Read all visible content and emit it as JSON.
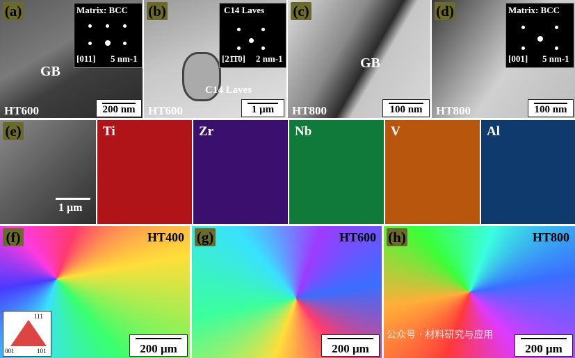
{
  "panels_top": [
    {
      "letter": "(a)",
      "condition": "HT600",
      "scale": "200 nm",
      "label_mid": "GB",
      "inset_title": "Matrix: BCC",
      "zone": "[011]",
      "inset_scale": "5 nm-1"
    },
    {
      "letter": "(b)",
      "condition": "HT600",
      "scale": "1 μm",
      "label_mid": "C14 Laves",
      "inset_title": "C14 Laves",
      "zone": "[21̄1̄0]",
      "inset_scale": "2 nm-1"
    },
    {
      "letter": "(c)",
      "condition": "HT800",
      "scale": "100 nm",
      "label_mid": "GB"
    },
    {
      "letter": "(d)",
      "condition": "HT800",
      "scale": "100 nm",
      "inset_title": "Matrix: BCC",
      "zone": "[001]",
      "inset_scale": "5 nm-1"
    }
  ],
  "row_e": {
    "letter": "(e)",
    "scale": "1 μm",
    "maps": [
      {
        "element": "Ti",
        "color": "#b01418",
        "text_color": "#ffffff"
      },
      {
        "element": "Zr",
        "color": "#3a0f6e",
        "text_color": "#ffffff"
      },
      {
        "element": "Nb",
        "color": "#0f7a3a",
        "text_color": "#ffffff"
      },
      {
        "element": "V",
        "color": "#b8560e",
        "text_color": "#ffffff"
      },
      {
        "element": "Al",
        "color": "#0f3a6e",
        "text_color": "#ffffff"
      }
    ]
  },
  "ebsd": [
    {
      "letter": "(f)",
      "condition": "HT400",
      "scale": "200 μm"
    },
    {
      "letter": "(g)",
      "condition": "HT600",
      "scale": "200 μm"
    },
    {
      "letter": "(h)",
      "condition": "HT800",
      "scale": "200 μm"
    }
  ],
  "ipf": {
    "top": "111",
    "left": "001",
    "right": "101"
  },
  "watermark": "公众号 · 材料研究与应用"
}
